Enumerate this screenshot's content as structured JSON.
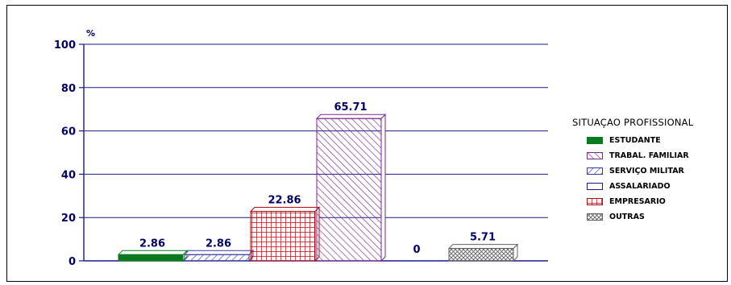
{
  "chart_data": {
    "type": "bar",
    "ylabel": "%",
    "ylim": [
      0,
      100
    ],
    "yticks": [
      0,
      20,
      40,
      60,
      80,
      100
    ],
    "grid": true,
    "legend_title": "SITUAÇAO PROFISSIONAL",
    "legend_position": "right",
    "categories": [
      "ESTUDANTE",
      "SERVIÇO MILITAR",
      "EMPRESARIO",
      "TRABAL. FAMILIAR",
      "ASSALARIADO",
      "OUTRAS"
    ],
    "values": [
      2.86,
      2.86,
      22.86,
      65.71,
      0,
      5.71
    ],
    "data_labels": [
      "2.86",
      "2.86",
      "22.86",
      "65.71",
      "0",
      "5.71"
    ],
    "legend": [
      {
        "label": "ESTUDANTE",
        "pattern": "solid-green"
      },
      {
        "label": "TRABAL. FAMILIAR",
        "pattern": "diag-purple"
      },
      {
        "label": "SERVIÇO MILITAR",
        "pattern": "diag-blue"
      },
      {
        "label": "ASSALARIADO",
        "pattern": "empty"
      },
      {
        "label": "EMPRESARIO",
        "pattern": "grid-red"
      },
      {
        "label": "OUTRAS",
        "pattern": "cross-gray"
      }
    ],
    "bar_patterns": [
      "solid-green",
      "diag-blue",
      "grid-red",
      "diag-purple",
      "empty",
      "cross-gray"
    ],
    "colors": {
      "grid": "#1a1a8c",
      "axis": "#1a1a8c",
      "text": "#000066",
      "solid-green": "#0a7a1e",
      "diag-blue": "#3a3aa0",
      "grid-red": "#b01010",
      "diag-purple": "#7a2a8a",
      "cross-gray": "#606060"
    }
  }
}
